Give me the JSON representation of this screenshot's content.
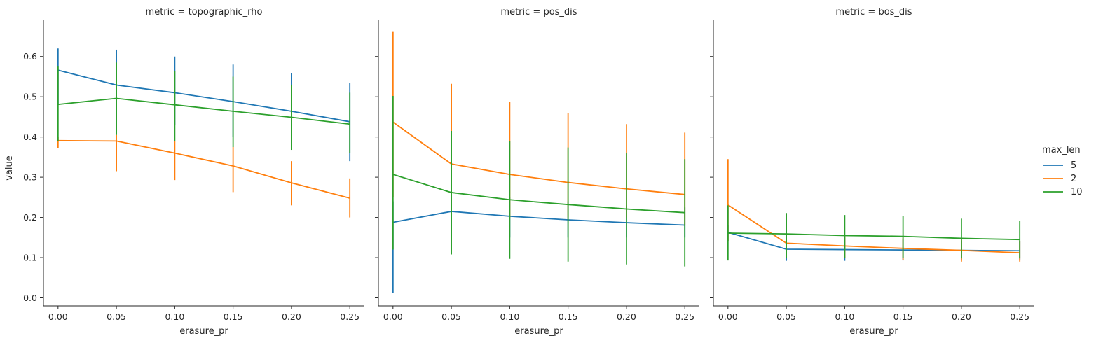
{
  "chart_data": {
    "type": "line",
    "layout": "facet-grid",
    "facet_titles": [
      "metric = topographic_rho",
      "metric = pos_dis",
      "metric = bos_dis"
    ],
    "xlabel": "erasure_pr",
    "ylabel": "value",
    "x": [
      0.0,
      0.05,
      0.1,
      0.15,
      0.2,
      0.25
    ],
    "x_tick_labels": [
      "0.00",
      "0.05",
      "0.10",
      "0.15",
      "0.20",
      "0.25"
    ],
    "xlim": [
      -0.0125,
      0.2625
    ],
    "ylim": [
      -0.02,
      0.69
    ],
    "y_ticks": [
      0.0,
      0.1,
      0.2,
      0.3,
      0.4,
      0.5,
      0.6
    ],
    "y_tick_labels": [
      "0.0",
      "0.1",
      "0.2",
      "0.3",
      "0.4",
      "0.5",
      "0.6"
    ],
    "shared_y": true,
    "error_bars": "vertical",
    "legend": {
      "title": "max_len",
      "placement": "right",
      "entries": [
        {
          "label": "5",
          "color": "#1f77b4"
        },
        {
          "label": "2",
          "color": "#ff7f0e"
        },
        {
          "label": "10",
          "color": "#2ca02c"
        }
      ]
    },
    "panels": [
      {
        "title": "metric = topographic_rho",
        "series": [
          {
            "name": "5",
            "color": "#1f77b4",
            "values": [
              0.566,
              0.529,
              0.51,
              0.488,
              0.464,
              0.438
            ],
            "err_low": [
              0.48,
              0.44,
              0.43,
              0.4,
              0.38,
              0.34
            ],
            "err_high": [
              0.62,
              0.617,
              0.6,
              0.58,
              0.558,
              0.535
            ]
          },
          {
            "name": "2",
            "color": "#ff7f0e",
            "values": [
              0.391,
              0.39,
              0.36,
              0.328,
              0.286,
              0.248
            ],
            "err_low": [
              0.372,
              0.315,
              0.293,
              0.263,
              0.23,
              0.2
            ],
            "err_high": [
              0.4,
              0.405,
              0.39,
              0.375,
              0.34,
              0.297
            ]
          },
          {
            "name": "10",
            "color": "#2ca02c",
            "values": [
              0.481,
              0.496,
              0.48,
              0.464,
              0.449,
              0.432
            ],
            "err_low": [
              0.39,
              0.405,
              0.39,
              0.375,
              0.368,
              0.36
            ],
            "err_high": [
              0.575,
              0.585,
              0.563,
              0.55,
              0.53,
              0.51
            ]
          }
        ]
      },
      {
        "title": "metric = pos_dis",
        "series": [
          {
            "name": "5",
            "color": "#1f77b4",
            "values": [
              0.188,
              0.215,
              0.203,
              0.194,
              0.187,
              0.181
            ],
            "err_low": [
              0.013,
              0.15,
              0.15,
              0.15,
              0.15,
              0.15
            ],
            "err_high": [
              0.24,
              0.25,
              0.25,
              0.24,
              0.23,
              0.225
            ]
          },
          {
            "name": "2",
            "color": "#ff7f0e",
            "values": [
              0.437,
              0.333,
              0.307,
              0.287,
              0.271,
              0.257
            ],
            "err_low": [
              0.25,
              0.2,
              0.2,
              0.2,
              0.2,
              0.18
            ],
            "err_high": [
              0.661,
              0.532,
              0.488,
              0.46,
              0.432,
              0.411
            ]
          },
          {
            "name": "10",
            "color": "#2ca02c",
            "values": [
              0.307,
              0.262,
              0.244,
              0.232,
              0.221,
              0.212
            ],
            "err_low": [
              0.12,
              0.108,
              0.097,
              0.09,
              0.083,
              0.078
            ],
            "err_high": [
              0.502,
              0.415,
              0.39,
              0.374,
              0.36,
              0.345
            ]
          }
        ]
      },
      {
        "title": "metric = bos_dis",
        "series": [
          {
            "name": "5",
            "color": "#1f77b4",
            "values": [
              0.163,
              0.121,
              0.12,
              0.119,
              0.118,
              0.117
            ],
            "err_low": [
              0.14,
              0.092,
              0.092,
              0.093,
              0.094,
              0.095
            ],
            "err_high": [
              0.18,
              0.15,
              0.15,
              0.145,
              0.14,
              0.14
            ]
          },
          {
            "name": "2",
            "color": "#ff7f0e",
            "values": [
              0.231,
              0.136,
              0.129,
              0.123,
              0.118,
              0.112
            ],
            "err_low": [
              0.14,
              0.11,
              0.1,
              0.095,
              0.09,
              0.09
            ],
            "err_high": [
              0.345,
              0.16,
              0.155,
              0.15,
              0.145,
              0.14
            ]
          },
          {
            "name": "10",
            "color": "#2ca02c",
            "values": [
              0.161,
              0.159,
              0.155,
              0.153,
              0.148,
              0.145
            ],
            "err_low": [
              0.093,
              0.1,
              0.1,
              0.1,
              0.098,
              0.098
            ],
            "err_high": [
              0.23,
              0.211,
              0.206,
              0.204,
              0.197,
              0.192
            ]
          }
        ]
      }
    ]
  }
}
